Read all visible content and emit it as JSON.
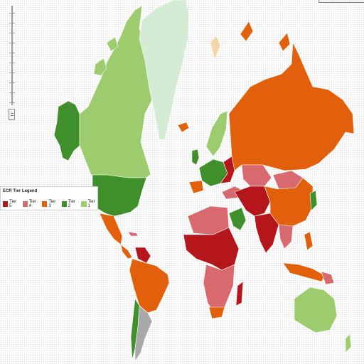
{
  "legend": {
    "title": "ECR Tier Legend",
    "items": [
      {
        "label": "Tier 5",
        "color": "#b5161c"
      },
      {
        "label": "Tier 4",
        "color": "#d8696e"
      },
      {
        "label": "Tier 3",
        "color": "#e2600b"
      },
      {
        "label": "Tier 2",
        "color": "#3f8f2a"
      },
      {
        "label": "Tier 1",
        "color": "#9dcc6f"
      }
    ]
  },
  "colors": {
    "tier5": "#b5161c",
    "tier4": "#d8696e",
    "tier3": "#e2600b",
    "tier2": "#3f8f2a",
    "tier1": "#9dcc6f",
    "greenland": "#d4ebd4",
    "no_data": "#a9a9a9",
    "special": "#f4d7a6"
  },
  "zoom_control": {
    "icon": "zoom-slider"
  }
}
